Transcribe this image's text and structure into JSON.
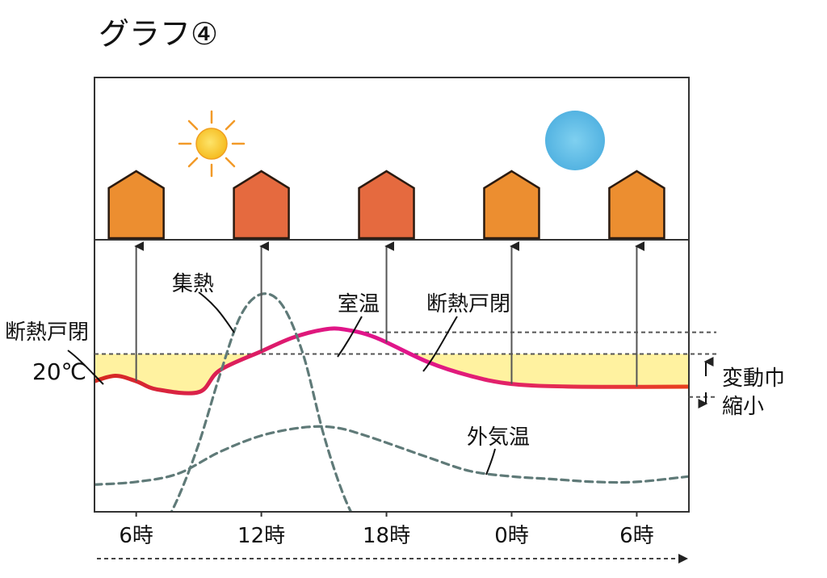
{
  "chart_data": {
    "type": "line",
    "title": "グラフ④",
    "x_ticks": [
      {
        "hour": 6,
        "label": "6時"
      },
      {
        "hour": 12,
        "label": "12時"
      },
      {
        "hour": 18,
        "label": "18時"
      },
      {
        "hour": 24,
        "label": "0時"
      },
      {
        "hour": 30,
        "label": "6時"
      }
    ],
    "x_range_hours": [
      4,
      32.5
    ],
    "y_range": [
      0,
      100
    ],
    "series": [
      {
        "name": "室温",
        "style": "solid",
        "points": [
          [
            4,
            48
          ],
          [
            5,
            50
          ],
          [
            6,
            48
          ],
          [
            7,
            45
          ],
          [
            9,
            44
          ],
          [
            10,
            52
          ],
          [
            12,
            59
          ],
          [
            13.5,
            64
          ],
          [
            15,
            67
          ],
          [
            16,
            67
          ],
          [
            17.5,
            64
          ],
          [
            20,
            55
          ],
          [
            22,
            50
          ],
          [
            24,
            47
          ],
          [
            27,
            46
          ],
          [
            32.5,
            46
          ]
        ]
      },
      {
        "name": "集熱",
        "style": "dashed",
        "points": [
          [
            7,
            -10
          ],
          [
            8,
            5
          ],
          [
            9,
            25
          ],
          [
            10,
            50
          ],
          [
            11,
            72
          ],
          [
            12,
            80
          ],
          [
            13,
            76
          ],
          [
            14,
            58
          ],
          [
            15,
            28
          ],
          [
            16,
            5
          ],
          [
            17,
            -10
          ]
        ]
      },
      {
        "name": "外気温",
        "style": "dashed",
        "points": [
          [
            4,
            10
          ],
          [
            6,
            11
          ],
          [
            8,
            14
          ],
          [
            10,
            22
          ],
          [
            12,
            28
          ],
          [
            14,
            31
          ],
          [
            15.5,
            31
          ],
          [
            17,
            28
          ],
          [
            20,
            20
          ],
          [
            22,
            15
          ],
          [
            24,
            13
          ],
          [
            26,
            12
          ],
          [
            28,
            11
          ],
          [
            30,
            11
          ],
          [
            32.5,
            13
          ]
        ]
      }
    ],
    "reference_lines": {
      "upper_value": 66,
      "lower_value": 58,
      "band_from_value": 44,
      "band_to_value": 58
    },
    "annotations": [
      {
        "text": "集熱",
        "target": "集熱"
      },
      {
        "text": "室温",
        "target": "室温"
      },
      {
        "text": "断熱戸閉",
        "target": "室温",
        "position": "right"
      },
      {
        "text": "断熱戸閉",
        "target": "室温",
        "position": "left"
      },
      {
        "text": "20℃",
        "target": "lower_reference"
      },
      {
        "text": "外気温",
        "target": "外気温"
      },
      {
        "text": "変動巾",
        "target": "bracket"
      },
      {
        "text": "縮小",
        "target": "bracket"
      }
    ]
  },
  "colors": {
    "frame": "#333333",
    "room_temp_start": "#d62a1e",
    "room_temp_mid": "#e0158a",
    "room_temp_end": "#e8401c",
    "dashed": "#5f7a78",
    "band": "#fff2a0",
    "house_warm": "#e56a3f",
    "house_cool": "#ec8e30",
    "house_outline": "#2a1a10",
    "sun": "#f7c21a",
    "sun_rays": "#f29a28",
    "moon_sky": "#6cc3e8",
    "arrow": "#555555"
  },
  "icons": [
    "sun-icon",
    "moon-icon",
    "house-icon"
  ]
}
